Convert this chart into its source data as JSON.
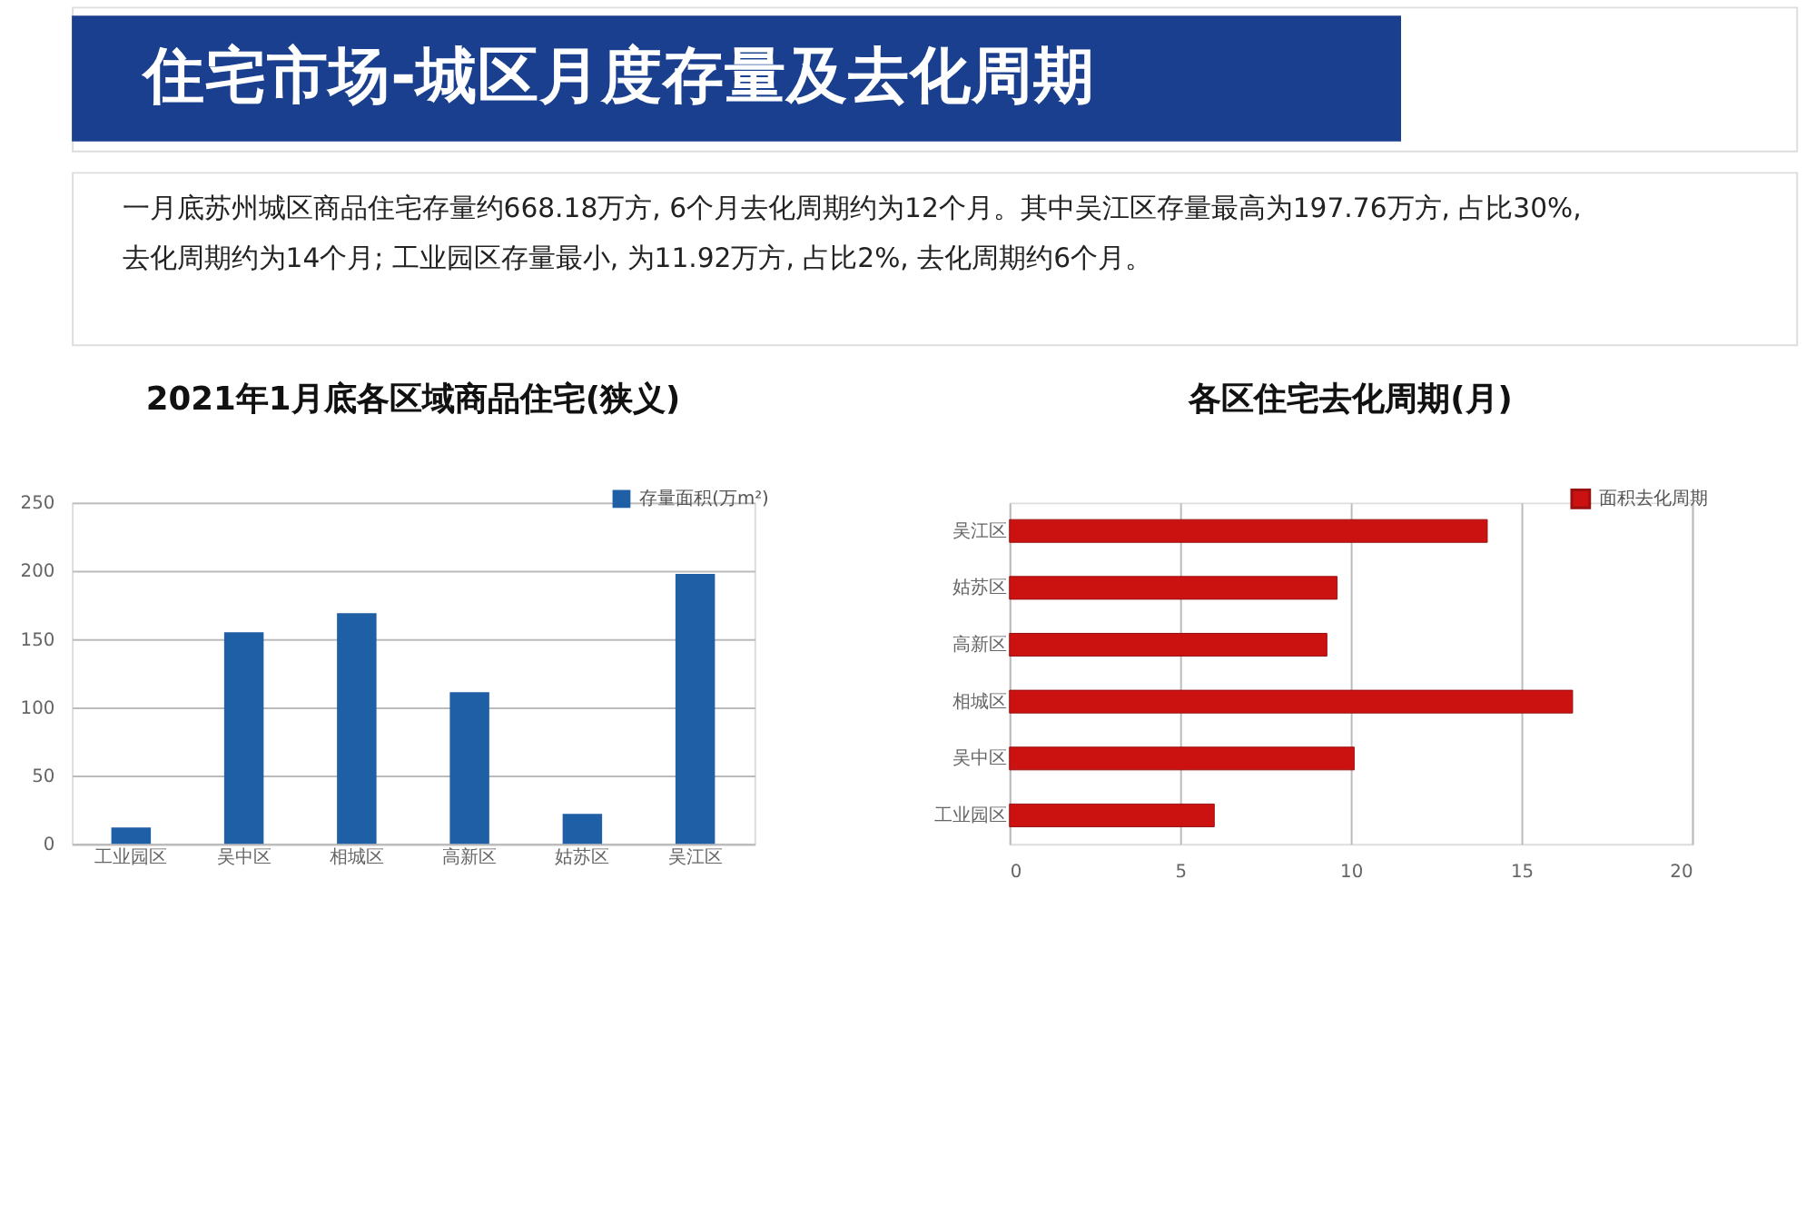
{
  "chart_data": [
    {
      "type": "other",
      "title": "住宅市场-城区月度存量及去化周期",
      "annotations": [
        "一月底苏州城区商品住宅存量约668.18万方, 6个月去化周期约为12个月。其中吴江区存量最高为197.76万方, 占比30%,",
        "去化周期约为14个月; 工业园区存量最小, 为11.92万方, 占比2%, 去化周期约6个月。"
      ]
    },
    {
      "type": "bar",
      "title": "2021年1月底各区域商品住宅(狭义)",
      "categories": [
        "工业园区",
        "吴中区",
        "相城区",
        "高新区",
        "姑苏区",
        "吴江区"
      ],
      "series": [
        {
          "name": "存量面积(万m²)",
          "color": "#1f5fa6",
          "values": [
            11.92,
            155,
            169,
            111,
            22,
            197.76
          ]
        }
      ],
      "ylim": [
        0,
        250
      ],
      "yticks": [
        0,
        50,
        100,
        150,
        200,
        250
      ],
      "grid": "y",
      "legend": "top right"
    },
    {
      "type": "bar",
      "orientation": "horizontal",
      "title": "各区住宅去化周期(月)",
      "categories": [
        "吴江区",
        "姑苏区",
        "高新区",
        "相城区",
        "吴中区",
        "工业园区"
      ],
      "series": [
        {
          "name": "面积去化周期",
          "color": "#cc1111",
          "values": [
            14.0,
            9.6,
            9.3,
            16.5,
            10.1,
            6.0
          ]
        }
      ],
      "xlim": [
        0,
        20
      ],
      "xticks": [
        0,
        5,
        10,
        15,
        20
      ],
      "grid": "x",
      "legend": "top right"
    }
  ]
}
